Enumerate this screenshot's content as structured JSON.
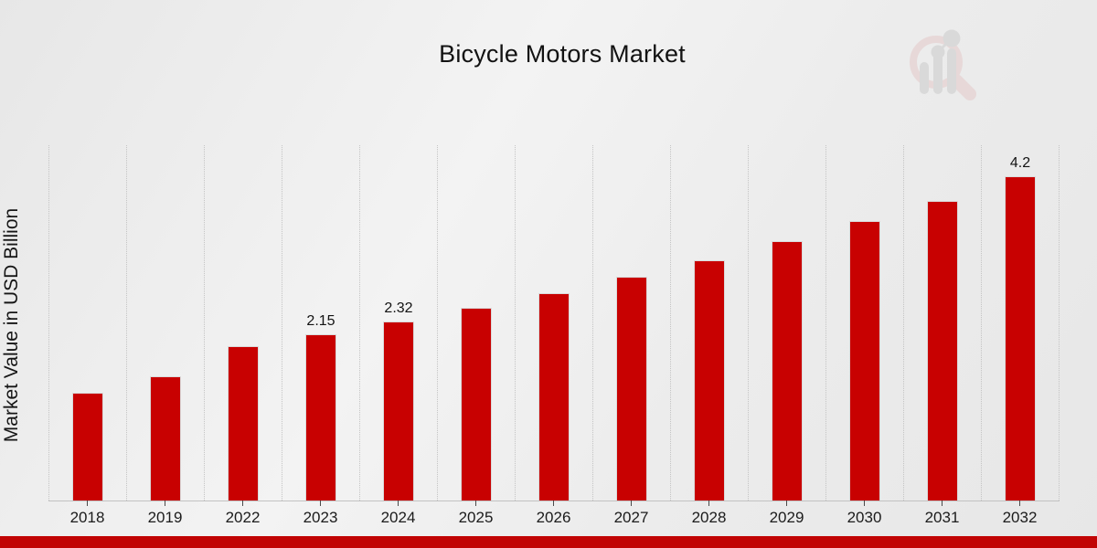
{
  "chart_data": {
    "type": "bar",
    "title": "Bicycle Motors Market",
    "xlabel": "",
    "ylabel": "Market Value in USD Billion",
    "categories": [
      "2018",
      "2019",
      "2022",
      "2023",
      "2024",
      "2025",
      "2026",
      "2027",
      "2028",
      "2029",
      "2030",
      "2031",
      "2032"
    ],
    "values": [
      1.4,
      1.61,
      2.0,
      2.15,
      2.32,
      2.49,
      2.68,
      2.9,
      3.11,
      3.36,
      3.62,
      3.88,
      4.2
    ],
    "data_labels": [
      "",
      "",
      "",
      "2.15",
      "2.32",
      "",
      "",
      "",
      "",
      "",
      "",
      "",
      "4.2"
    ],
    "ylim": [
      0,
      4.6
    ],
    "grid": "vertical-dotted",
    "legend": "none",
    "bar_color": "#c80101",
    "bar_border_color": "#dadada",
    "grid_color": "#c4c4c4",
    "axis_color": "#c2c2c2",
    "tick_color": "#4a4a4a",
    "text_color": "#131313"
  },
  "branding": {
    "logo_icon": "magnifier-bar-chart-watermark",
    "logo_ring_color": "#e4c9c9",
    "logo_bar_color": "#cbcbcb",
    "footer_strip_color": "#c10404"
  }
}
